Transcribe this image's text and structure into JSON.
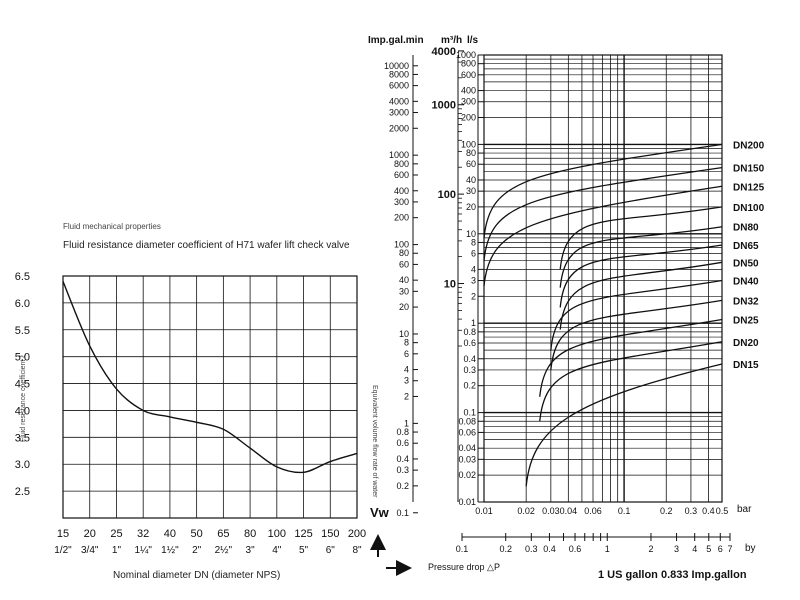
{
  "page": {
    "caption": "Fluid mechanical properties",
    "left_title": "Fluid resistance diameter coefficient of H71 wafer lift check valve",
    "left_xlabel": "Nominal diameter DN (diameter NPS)",
    "left_ylabel": "Fluid resistance coefficient ξ",
    "right_mid_label": "Equivalent volume flow rate of water",
    "vw_label": "Vw",
    "pressure_label": "Pressure drop △P",
    "conversion_note": "1 US gallon 0.833 Imp.gallon",
    "bar_unit": "bar",
    "by_unit": "by",
    "col_head_imp": "Imp.gal.min",
    "col_head_m3h": "m³/h",
    "col_head_ls": "l/s"
  },
  "colors": {
    "line": "#111111",
    "grid": "#111111",
    "background": "#ffffff"
  },
  "chart_data": [
    {
      "type": "line",
      "title": "Fluid resistance diameter coefficient of H71 wafer lift check valve",
      "xlabel": "Nominal diameter DN (diameter NPS)",
      "ylabel": "Fluid resistance coefficient ξ",
      "categories": [
        "15",
        "20",
        "25",
        "32",
        "40",
        "50",
        "65",
        "80",
        "100",
        "125",
        "150",
        "200"
      ],
      "categories_nps": [
        "1/2\"",
        "3/4\"",
        "1\"",
        "1¼\"",
        "1½\"",
        "2\"",
        "2½\"",
        "3\"",
        "4\"",
        "5\"",
        "6\"",
        "8\""
      ],
      "yticks": [
        "6.5",
        "6.0",
        "5.5",
        "5.0",
        "4.5",
        "4.0",
        "3.5",
        "3.0",
        "2.5"
      ],
      "ylim": [
        2.0,
        6.5
      ],
      "grid": true,
      "series": [
        {
          "values": [
            6.4,
            5.2,
            4.4,
            4.0,
            3.88,
            3.78,
            3.65,
            3.3,
            2.95,
            2.85,
            3.05,
            3.2
          ]
        }
      ]
    },
    {
      "type": "line",
      "scale": "log-log",
      "xlabel": "Pressure drop △P",
      "x_unit": "bar",
      "xlim": [
        0.01,
        0.5
      ],
      "ylim": [
        0.01,
        1000
      ],
      "x_ticks": [
        "0.01",
        "0.02",
        "0.03",
        "0.04",
        "0.06",
        "0.1",
        "0.2",
        "0.3",
        "0.4",
        "0.5"
      ],
      "by_ticks": [
        "0.1",
        "0.2",
        "0.3",
        "0.4",
        "0.6",
        "1",
        "2",
        "3",
        "4",
        "5",
        "6",
        "7"
      ],
      "ls_ticks": [
        "1000",
        "800",
        "600",
        "400",
        "300",
        "200",
        "100",
        "80",
        "60",
        "40",
        "30",
        "20",
        "10",
        "8",
        "6",
        "4",
        "3",
        "2",
        "1",
        "0.8",
        "0.6",
        "0.4",
        "0.3",
        "0.2",
        "0.1",
        "0.08",
        "0.06",
        "0.04",
        "0.03",
        "0.02",
        "0.01"
      ],
      "m3h_ticks": [
        "4000",
        "1000",
        "100",
        "10"
      ],
      "imp_ticks": [
        "10000",
        "8000",
        "6000",
        "4000",
        "3000",
        "2000",
        "1000",
        "800",
        "600",
        "400",
        "300",
        "200",
        "100",
        "80",
        "60",
        "40",
        "30",
        "20",
        "10",
        "8",
        "6",
        "4",
        "3",
        "2",
        "1",
        "0.8",
        "0.6",
        "0.4",
        "0.3",
        "0.2",
        "0.1"
      ],
      "grid": true,
      "series": [
        {
          "name": "DN200",
          "points": [
            [
              0.01,
              9
            ],
            [
              0.5,
              100
            ]
          ]
        },
        {
          "name": "DN150",
          "points": [
            [
              0.01,
              5
            ],
            [
              0.5,
              55
            ]
          ]
        },
        {
          "name": "DN125",
          "points": [
            [
              0.01,
              2.6
            ],
            [
              0.5,
              34
            ]
          ]
        },
        {
          "name": "DN100",
          "points": [
            [
              0.035,
              4
            ],
            [
              0.5,
              20
            ]
          ]
        },
        {
          "name": "DN80",
          "points": [
            [
              0.035,
              2.5
            ],
            [
              0.5,
              12
            ]
          ]
        },
        {
          "name": "DN65",
          "points": [
            [
              0.035,
              1.5
            ],
            [
              0.5,
              7.5
            ]
          ]
        },
        {
          "name": "DN50",
          "points": [
            [
              0.035,
              0.85
            ],
            [
              0.5,
              4.8
            ]
          ]
        },
        {
          "name": "DN40",
          "points": [
            [
              0.03,
              0.5
            ],
            [
              0.5,
              3
            ]
          ]
        },
        {
          "name": "DN32",
          "points": [
            [
              0.03,
              0.3
            ],
            [
              0.5,
              1.8
            ]
          ]
        },
        {
          "name": "DN25",
          "points": [
            [
              0.025,
              0.15
            ],
            [
              0.5,
              1.1
            ]
          ]
        },
        {
          "name": "DN20",
          "points": [
            [
              0.025,
              0.08
            ],
            [
              0.5,
              0.62
            ]
          ]
        },
        {
          "name": "DN15",
          "points": [
            [
              0.02,
              0.015
            ],
            [
              0.5,
              0.35
            ]
          ]
        }
      ]
    }
  ]
}
